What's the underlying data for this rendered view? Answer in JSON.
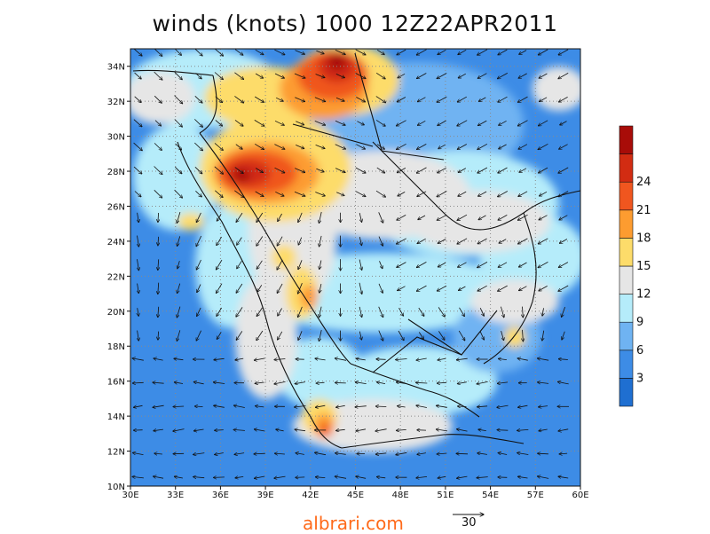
{
  "title": "winds (knots) 1000 12Z22APR2011",
  "credit": "albrari.com",
  "reference_vector_label": "30",
  "map": {
    "lon_range": [
      30,
      60
    ],
    "lat_range": [
      10,
      35
    ],
    "lat_ticks": [
      "10N",
      "12N",
      "14N",
      "16N",
      "18N",
      "20N",
      "22N",
      "24N",
      "26N",
      "28N",
      "30N",
      "32N",
      "34N"
    ],
    "lon_ticks": [
      "30E",
      "33E",
      "36E",
      "39E",
      "42E",
      "45E",
      "48E",
      "51E",
      "54E",
      "57E",
      "60E"
    ],
    "grid": "dotted"
  },
  "colorbar": {
    "labels": [
      "3",
      "6",
      "9",
      "12",
      "15",
      "18",
      "21",
      "24"
    ],
    "colors": [
      "#1f6fd1",
      "#3d8ce6",
      "#6fb3f2",
      "#b5ecfa",
      "#e6e6e6",
      "#fddc6a",
      "#fd9c30",
      "#f0561f",
      "#d22c12",
      "#a80c08"
    ]
  },
  "chart_data": {
    "type": "heatmap",
    "variable": "wind speed (knots)",
    "level": "1000",
    "time": "12Z22APR2011",
    "levels": [
      3,
      6,
      9,
      12,
      15,
      18,
      21,
      24
    ],
    "wind_maxima": [
      {
        "lon": 43.5,
        "lat": 34.0,
        "speed_class": ">24"
      },
      {
        "lon": 38.0,
        "lat": 27.8,
        "speed_class": ">24"
      },
      {
        "lon": 43.0,
        "lat": 13.0,
        "speed_class": "21-24"
      }
    ]
  }
}
